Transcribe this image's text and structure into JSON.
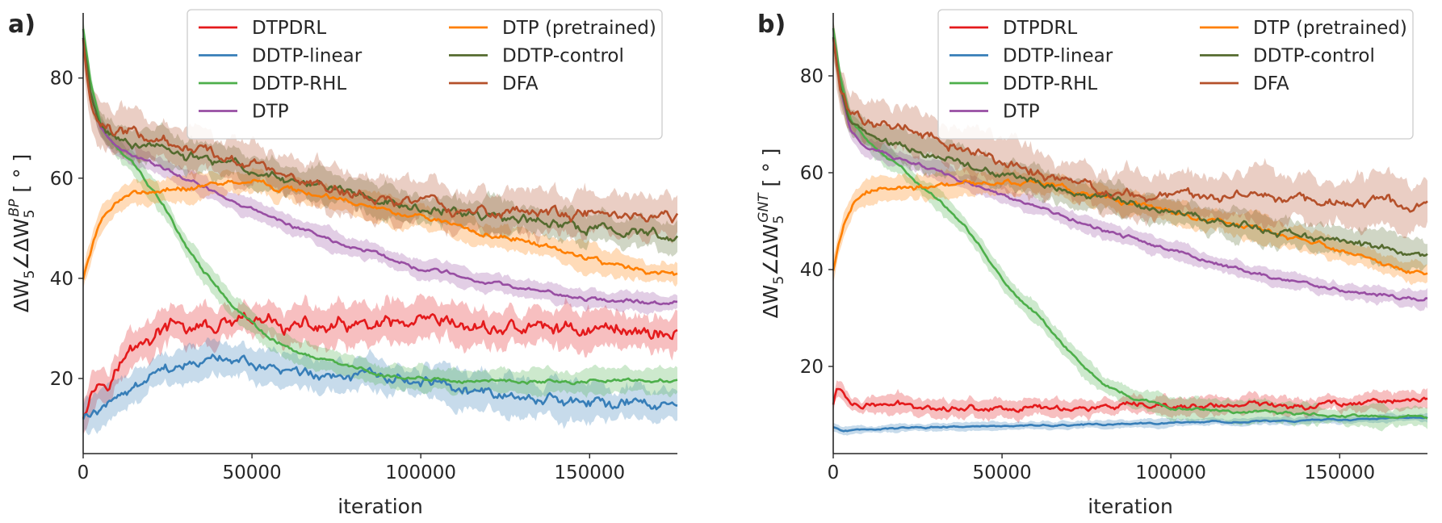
{
  "figure": {
    "panels": [
      "a)",
      "b)"
    ]
  },
  "chart_data": [
    {
      "type": "line",
      "panel_label": "a)",
      "xlabel": "iteration",
      "ylabel_main": "ΔW",
      "ylabel_sub1": "5",
      "ylabel_angle": "∠ΔW",
      "ylabel_sub2": "5",
      "ylabel_sup2": "BP",
      "ylabel_unit": "[ ° ]",
      "xlim": [
        0,
        176000
      ],
      "ylim": [
        5,
        93
      ],
      "xticks": [
        0,
        50000,
        100000,
        150000
      ],
      "xtick_labels": [
        "0",
        "50000",
        "100000",
        "150000"
      ],
      "yticks": [
        20,
        40,
        60,
        80
      ],
      "ytick_labels": [
        "20",
        "40",
        "60",
        "80"
      ],
      "legend_position": "top-right",
      "series": [
        {
          "name": "DTPDRL",
          "color": "#e41a1c",
          "band": 3.5,
          "noise": 2.0,
          "x": [
            0,
            2000,
            8000,
            15000,
            25000,
            40000,
            55000,
            70000,
            85000,
            100000,
            115000,
            130000,
            145000,
            160000,
            176000
          ],
          "y": [
            13,
            18,
            21,
            26,
            30,
            30,
            31,
            30,
            30,
            30,
            30,
            30,
            30,
            30,
            29
          ]
        },
        {
          "name": "DDTP-linear",
          "color": "#377eb8",
          "band": 3.2,
          "noise": 1.4,
          "x": [
            0,
            3000,
            10000,
            20000,
            30000,
            42000,
            55000,
            70000,
            85000,
            100000,
            115000,
            130000,
            145000,
            160000,
            176000
          ],
          "y": [
            12,
            13,
            17,
            20,
            22,
            23.5,
            22,
            21,
            20,
            18.5,
            17,
            16.5,
            15.5,
            15,
            14
          ]
        },
        {
          "name": "DDTP-RHL",
          "color": "#4daf4a",
          "band": 2.2,
          "noise": 0.5,
          "x": [
            0,
            2000,
            5000,
            10000,
            15000,
            20000,
            25000,
            30000,
            35000,
            40000,
            45000,
            50000,
            55000,
            60000,
            70000,
            80000,
            90000,
            100000,
            110000,
            130000,
            150000,
            176000
          ],
          "y": [
            90,
            80,
            71,
            66,
            63,
            58,
            53,
            47,
            42,
            38,
            34,
            31,
            28,
            26.5,
            24,
            22,
            20.5,
            20,
            19.5,
            19.5,
            19.5,
            19.5
          ]
        },
        {
          "name": "DTP",
          "color": "#984ea3",
          "band": 1.8,
          "noise": 0.5,
          "x": [
            0,
            2000,
            5000,
            10000,
            20000,
            30000,
            40000,
            50000,
            60000,
            70000,
            80000,
            90000,
            100000,
            110000,
            120000,
            130000,
            140000,
            150000,
            160000,
            176000
          ],
          "y": [
            88,
            78,
            70,
            66,
            63,
            60,
            57,
            54,
            51,
            48.5,
            46,
            44,
            42,
            40.5,
            39,
            38,
            37,
            36,
            35.5,
            35
          ]
        },
        {
          "name": "DTP (pretrained)",
          "color": "#ff7f00",
          "band": 2.3,
          "noise": 0.7,
          "x": [
            0,
            3000,
            6000,
            10000,
            15000,
            20000,
            30000,
            40000,
            50000,
            60000,
            70000,
            80000,
            90000,
            100000,
            110000,
            120000,
            130000,
            140000,
            150000,
            160000,
            176000
          ],
          "y": [
            40,
            47,
            52,
            55,
            57,
            57.5,
            58,
            59,
            59.5,
            58,
            56.5,
            55,
            53.5,
            52,
            50.5,
            49,
            47.5,
            46,
            44,
            42,
            40.5
          ]
        },
        {
          "name": "DDTP-control",
          "color": "#556b2f",
          "band": 3.0,
          "noise": 1.2,
          "x": [
            0,
            2000,
            5000,
            10000,
            20000,
            30000,
            40000,
            50000,
            60000,
            70000,
            80000,
            90000,
            100000,
            110000,
            120000,
            130000,
            140000,
            150000,
            160000,
            176000
          ],
          "y": [
            88,
            78,
            71,
            68,
            66,
            64.5,
            63,
            61.5,
            60,
            58.5,
            57,
            55.5,
            54,
            53,
            52,
            51.5,
            51,
            50,
            49.5,
            48.5
          ]
        },
        {
          "name": "DFA",
          "color": "#b5502a",
          "band": 4.0,
          "noise": 1.4,
          "x": [
            0,
            2000,
            5000,
            10000,
            20000,
            30000,
            40000,
            50000,
            60000,
            70000,
            80000,
            90000,
            100000,
            110000,
            120000,
            130000,
            140000,
            150000,
            160000,
            176000
          ],
          "y": [
            88,
            77,
            72,
            70,
            68,
            66.5,
            65,
            63,
            61,
            59,
            57,
            55.5,
            54.5,
            54,
            53.5,
            53,
            53,
            52.5,
            52.5,
            52
          ]
        }
      ]
    },
    {
      "type": "line",
      "panel_label": "b)",
      "xlabel": "iteration",
      "ylabel_main": "ΔW",
      "ylabel_sub1": "5",
      "ylabel_angle": "∠ΔW",
      "ylabel_sub2": "5",
      "ylabel_sup2": "GNT",
      "ylabel_unit": "[ ° ]",
      "xlim": [
        0,
        176000
      ],
      "ylim": [
        2,
        93
      ],
      "xticks": [
        0,
        50000,
        100000,
        150000
      ],
      "xtick_labels": [
        "0",
        "50000",
        "100000",
        "150000"
      ],
      "yticks": [
        20,
        40,
        60,
        80
      ],
      "ytick_labels": [
        "20",
        "40",
        "60",
        "80"
      ],
      "legend_position": "top-right",
      "series": [
        {
          "name": "DTPDRL",
          "color": "#e41a1c",
          "band": 1.8,
          "noise": 0.8,
          "x": [
            0,
            1000,
            2500,
            5000,
            8000,
            20000,
            40000,
            60000,
            80000,
            100000,
            120000,
            140000,
            150000,
            160000,
            176000
          ],
          "y": [
            12,
            15.5,
            15,
            12.5,
            12,
            12,
            11.5,
            11.5,
            11.5,
            11.5,
            12,
            12,
            12.5,
            13,
            13
          ]
        },
        {
          "name": "DDTP-linear",
          "color": "#377eb8",
          "band": 0.8,
          "noise": 0.2,
          "x": [
            0,
            3000,
            10000,
            30000,
            60000,
            90000,
            120000,
            150000,
            176000
          ],
          "y": [
            7.5,
            6.5,
            7,
            7.5,
            7.8,
            8.2,
            8.6,
            9,
            9.5
          ]
        },
        {
          "name": "DDTP-RHL",
          "color": "#4daf4a",
          "band": 2.0,
          "noise": 0.4,
          "x": [
            0,
            2000,
            5000,
            10000,
            15000,
            20000,
            25000,
            30000,
            35000,
            40000,
            45000,
            50000,
            55000,
            60000,
            65000,
            70000,
            75000,
            80000,
            85000,
            90000,
            100000,
            110000,
            130000,
            150000,
            176000
          ],
          "y": [
            90,
            80,
            71,
            67,
            64,
            61,
            58,
            55,
            52,
            48,
            43,
            38,
            34,
            31,
            27,
            23,
            19.5,
            16.5,
            14.5,
            13,
            11.5,
            11,
            10.5,
            10,
            9.5
          ]
        },
        {
          "name": "DTP",
          "color": "#984ea3",
          "band": 1.7,
          "noise": 0.5,
          "x": [
            0,
            2000,
            5000,
            10000,
            20000,
            30000,
            40000,
            50000,
            60000,
            70000,
            80000,
            90000,
            100000,
            110000,
            120000,
            130000,
            140000,
            150000,
            160000,
            176000
          ],
          "y": [
            88,
            78,
            69,
            65,
            63,
            60.5,
            58,
            55.5,
            53,
            50.5,
            48,
            46,
            44,
            42,
            40,
            38.5,
            37,
            36,
            35,
            34
          ]
        },
        {
          "name": "DTP (pretrained)",
          "color": "#ff7f00",
          "band": 2.5,
          "noise": 0.7,
          "x": [
            0,
            3000,
            6000,
            10000,
            15000,
            20000,
            30000,
            40000,
            50000,
            60000,
            70000,
            80000,
            90000,
            100000,
            110000,
            120000,
            130000,
            140000,
            150000,
            160000,
            176000
          ],
          "y": [
            40,
            49,
            54,
            56,
            57,
            57,
            57,
            58,
            58,
            58,
            56.5,
            55,
            53.5,
            52,
            50.5,
            49,
            47.5,
            46,
            44,
            42,
            39.5
          ]
        },
        {
          "name": "DDTP-control",
          "color": "#556b2f",
          "band": 3.0,
          "noise": 1.0,
          "x": [
            0,
            2000,
            5000,
            10000,
            20000,
            30000,
            40000,
            50000,
            60000,
            70000,
            80000,
            90000,
            100000,
            110000,
            120000,
            130000,
            140000,
            150000,
            160000,
            176000
          ],
          "y": [
            88,
            78,
            70,
            68,
            66,
            64,
            62,
            60,
            58,
            56.5,
            55,
            53.5,
            52,
            50.5,
            49,
            48,
            47,
            46,
            45,
            43
          ]
        },
        {
          "name": "DFA",
          "color": "#b5502a",
          "band": 4.5,
          "noise": 1.4,
          "x": [
            0,
            2000,
            5000,
            10000,
            20000,
            30000,
            40000,
            50000,
            60000,
            70000,
            80000,
            90000,
            100000,
            110000,
            120000,
            130000,
            140000,
            150000,
            160000,
            176000
          ],
          "y": [
            88,
            77,
            72,
            70.5,
            69,
            67.5,
            65,
            62.5,
            60,
            58,
            56.5,
            55.5,
            55,
            55,
            55,
            54.5,
            54.5,
            54,
            54,
            53.5
          ]
        }
      ]
    }
  ]
}
